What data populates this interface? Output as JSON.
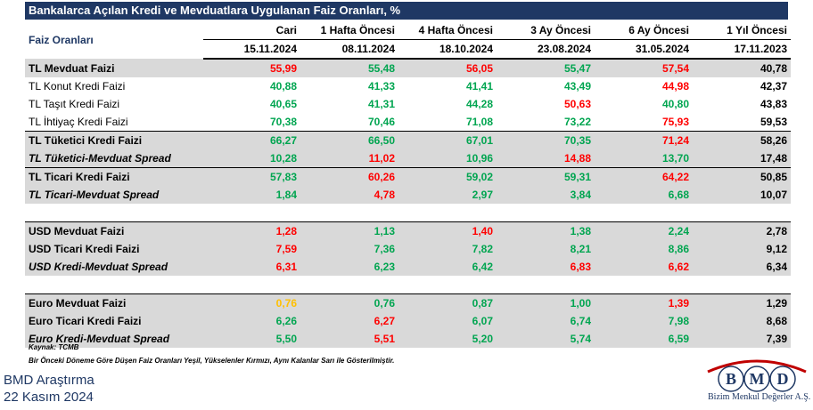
{
  "title": "Bankalarca Açılan Kredi ve Mevduatlara Uygulanan Faiz Oranları, %",
  "header": {
    "row_label": "Faiz Oranları",
    "periods": [
      "Cari",
      "1 Hafta Öncesi",
      "4 Hafta Öncesi",
      "3 Ay Öncesi",
      "6 Ay Öncesi",
      "1 Yıl Öncesi"
    ],
    "dates": [
      "15.11.2024",
      "08.11.2024",
      "18.10.2024",
      "23.08.2024",
      "31.05.2024",
      "17.11.2023"
    ]
  },
  "colors": {
    "green": "#00a550",
    "red": "#ff0000",
    "yellow": "#ffc000",
    "black": "#000000",
    "header_bg": "#1f3864",
    "row_grey": "#d9d9d9"
  },
  "rows": [
    {
      "label": "TL Mevduat Faizi",
      "values": [
        "55,99",
        "55,48",
        "56,05",
        "55,47",
        "57,54",
        "40,78"
      ],
      "colors": [
        "red",
        "green",
        "red",
        "green",
        "red",
        "black"
      ]
    },
    {
      "label": "TL Konut Kredi Faizi",
      "values": [
        "40,88",
        "41,33",
        "41,41",
        "43,49",
        "44,98",
        "42,37"
      ],
      "colors": [
        "green",
        "green",
        "green",
        "green",
        "red",
        "black"
      ]
    },
    {
      "label": "TL Taşıt Kredi Faizi",
      "values": [
        "40,65",
        "41,31",
        "44,28",
        "50,63",
        "40,80",
        "43,83"
      ],
      "colors": [
        "green",
        "green",
        "green",
        "red",
        "green",
        "black"
      ]
    },
    {
      "label": "TL İhtiyaç Kredi Faizi",
      "values": [
        "70,38",
        "70,46",
        "71,08",
        "73,22",
        "75,93",
        "59,53"
      ],
      "colors": [
        "green",
        "green",
        "green",
        "green",
        "red",
        "black"
      ]
    },
    {
      "label": "TL Tüketici Kredi Faizi",
      "values": [
        "66,27",
        "66,50",
        "67,01",
        "70,35",
        "71,24",
        "58,26"
      ],
      "colors": [
        "green",
        "green",
        "green",
        "green",
        "red",
        "black"
      ]
    },
    {
      "label": "TL Tüketici-Mevduat Spread",
      "values": [
        "10,28",
        "11,02",
        "10,96",
        "14,88",
        "13,70",
        "17,48"
      ],
      "colors": [
        "green",
        "red",
        "green",
        "red",
        "green",
        "black"
      ]
    },
    {
      "label": "TL Ticari Kredi Faizi",
      "values": [
        "57,83",
        "60,26",
        "59,02",
        "59,31",
        "64,22",
        "50,85"
      ],
      "colors": [
        "green",
        "red",
        "green",
        "green",
        "red",
        "black"
      ]
    },
    {
      "label": "TL Ticari-Mevduat Spread",
      "values": [
        "1,84",
        "4,78",
        "2,97",
        "3,84",
        "6,68",
        "10,07"
      ],
      "colors": [
        "green",
        "red",
        "green",
        "green",
        "green",
        "black"
      ]
    },
    {
      "label": "USD Mevduat Faizi",
      "values": [
        "1,28",
        "1,13",
        "1,40",
        "1,38",
        "2,24",
        "2,78"
      ],
      "colors": [
        "red",
        "green",
        "red",
        "green",
        "green",
        "black"
      ]
    },
    {
      "label": "USD Ticari Kredi Faizi",
      "values": [
        "7,59",
        "7,36",
        "7,82",
        "8,21",
        "8,86",
        "9,12"
      ],
      "colors": [
        "red",
        "green",
        "green",
        "green",
        "green",
        "black"
      ]
    },
    {
      "label": "USD Kredi-Mevduat Spread",
      "values": [
        "6,31",
        "6,23",
        "6,42",
        "6,83",
        "6,62",
        "6,34"
      ],
      "colors": [
        "red",
        "green",
        "green",
        "red",
        "red",
        "black"
      ]
    },
    {
      "label": "Euro Mevduat Faizi",
      "values": [
        "0,76",
        "0,76",
        "0,87",
        "1,00",
        "1,39",
        "1,29"
      ],
      "colors": [
        "yellow",
        "green",
        "green",
        "green",
        "red",
        "black"
      ]
    },
    {
      "label": "Euro Ticari Kredi Faizi",
      "values": [
        "6,26",
        "6,27",
        "6,07",
        "6,74",
        "7,98",
        "8,68"
      ],
      "colors": [
        "green",
        "red",
        "green",
        "green",
        "green",
        "black"
      ]
    },
    {
      "label": "Euro Kredi-Mevduat Spread",
      "values": [
        "5,50",
        "5,51",
        "5,20",
        "5,74",
        "6,59",
        "7,39"
      ],
      "colors": [
        "green",
        "red",
        "green",
        "green",
        "green",
        "black"
      ]
    }
  ],
  "source": "Kaynak: TCMB",
  "note": "Bir Önceki Döneme Göre Düşen Faiz Oranları Yeşil, Yükselenler Kırmızı, Aynı Kalanlar Sarı ile Gösterilmiştir.",
  "footer": {
    "line1": "BMD Araştırma",
    "line2": "22 Kasım 2024"
  },
  "logo": {
    "letters": [
      "B",
      "M",
      "D"
    ],
    "tagline": "Bizim Menkul Değerler A.Ş."
  }
}
